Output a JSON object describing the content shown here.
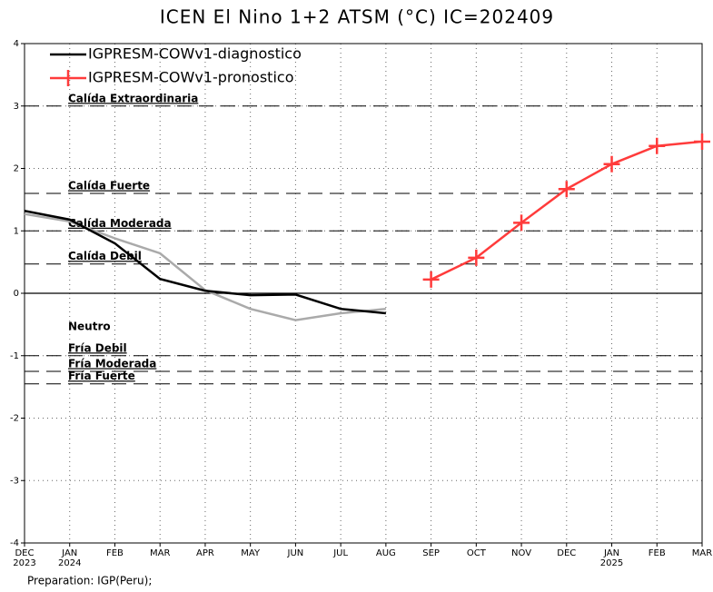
{
  "chart_data": {
    "type": "line",
    "title": "ICEN El Nino 1+2 ATSM (°C) IC=202409",
    "footer": "Preparation: IGP(Peru);",
    "categories": [
      "DEC",
      "JAN",
      "FEB",
      "MAR",
      "APR",
      "MAY",
      "JUN",
      "JUL",
      "AUG",
      "SEP",
      "OCT",
      "NOV",
      "DEC",
      "JAN",
      "FEB",
      "MAR"
    ],
    "year_labels": [
      "2023",
      "2024",
      null,
      null,
      null,
      null,
      null,
      null,
      null,
      null,
      null,
      null,
      null,
      "2025",
      null,
      null
    ],
    "ylim": [
      -4,
      4
    ],
    "yticks": [
      -4,
      -3,
      -2,
      -1,
      0,
      1,
      2,
      3,
      4
    ],
    "grid": true,
    "series": [
      {
        "color": "#aaaaaa",
        "values": [
          1.27,
          1.15,
          0.88,
          0.64,
          0.05,
          -0.25,
          -0.43,
          -0.32,
          -0.25,
          null,
          null,
          null,
          null,
          null,
          null,
          null
        ]
      },
      {
        "name": "IGPRESM-COWv1-diagnostico",
        "color": "#000000",
        "values": [
          1.32,
          1.18,
          0.8,
          0.23,
          0.04,
          -0.03,
          -0.02,
          -0.25,
          -0.32,
          null,
          null,
          null,
          null,
          null,
          null,
          null
        ]
      },
      {
        "name": "IGPRESM-COWv1-pronostico",
        "color": "#ff3b3b",
        "marker": "plus",
        "values": [
          null,
          null,
          null,
          null,
          null,
          null,
          null,
          null,
          null,
          0.22,
          0.57,
          1.13,
          1.67,
          2.07,
          2.36,
          2.43
        ]
      }
    ],
    "thresholds": [
      {
        "value": 3.0,
        "label": "Calída Extraordinaria"
      },
      {
        "value": 1.6,
        "label": "Calída Fuerte"
      },
      {
        "value": 1.0,
        "label": "Calída Moderada"
      },
      {
        "value": 0.47,
        "label": "Calída Debil"
      },
      {
        "value": -1.0,
        "label": "Fría Debil"
      },
      {
        "value": -1.25,
        "label": "Fría Moderada"
      },
      {
        "value": -1.45,
        "label": "Fría Fuerte"
      }
    ],
    "neutral_label": "Neutro"
  }
}
